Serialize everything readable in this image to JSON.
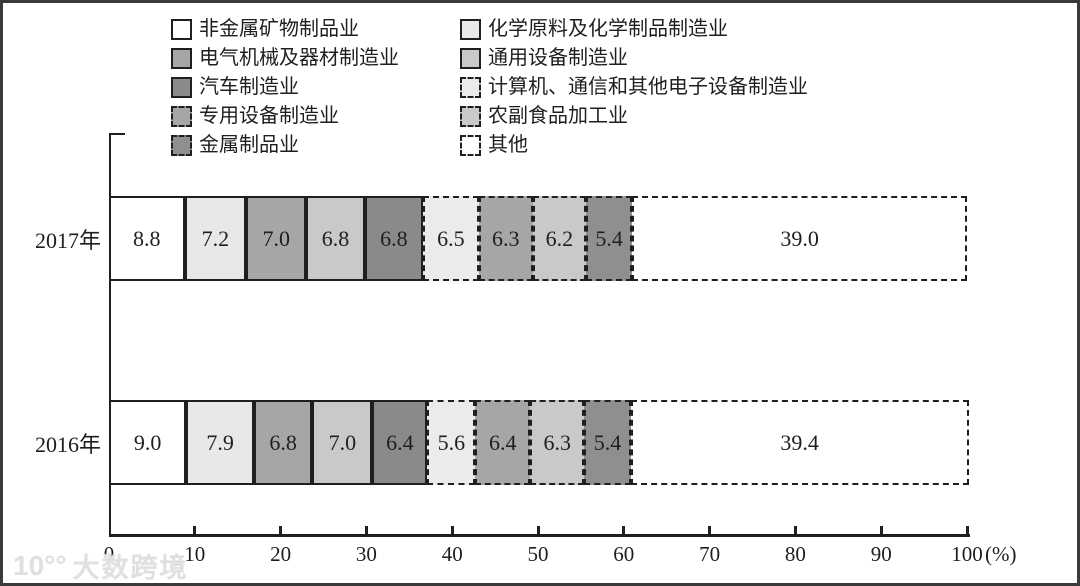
{
  "watermark": {
    "logo": "10°°",
    "text": "大数跨境"
  },
  "axis": {
    "ticks": [
      "0",
      "10",
      "20",
      "30",
      "40",
      "50",
      "60",
      "70",
      "80",
      "90",
      "100"
    ],
    "unit_label": "(%)"
  },
  "chart_data": {
    "type": "bar",
    "subtype": "horizontal-stacked",
    "title": "",
    "xlabel": "(%)",
    "xlim": [
      0,
      100
    ],
    "grid": false,
    "legend_position": "top",
    "categories": [
      "非金属矿物制品业",
      "化学原料及化学制品制造业",
      "电气机械及器材制造业",
      "通用设备制造业",
      "汽车制造业",
      "计算机、通信和其他电子设备制造业",
      "专用设备制造业",
      "农副食品加工业",
      "金属制品业",
      "其他"
    ],
    "category_styles": [
      {
        "fill": "#ffffff",
        "border": "solid"
      },
      {
        "fill": "#e8e8e8",
        "border": "solid"
      },
      {
        "fill": "#a6a6a6",
        "border": "solid"
      },
      {
        "fill": "#c9c9c9",
        "border": "solid"
      },
      {
        "fill": "#8a8a8a",
        "border": "solid"
      },
      {
        "fill": "#ebebeb",
        "border": "dashed"
      },
      {
        "fill": "#a6a6a6",
        "border": "dashed"
      },
      {
        "fill": "#c9c9c9",
        "border": "dashed"
      },
      {
        "fill": "#8f8f8f",
        "border": "dashed"
      },
      {
        "fill": "#ffffff",
        "border": "dashed"
      }
    ],
    "series": [
      {
        "name": "2017年",
        "values": [
          8.8,
          7.2,
          7.0,
          6.8,
          6.8,
          6.5,
          6.3,
          6.2,
          5.4,
          39.0
        ]
      },
      {
        "name": "2016年",
        "values": [
          9.0,
          7.9,
          6.8,
          7.0,
          6.4,
          5.6,
          6.4,
          6.3,
          5.4,
          39.4
        ]
      }
    ],
    "value_label_format": "one-decimal",
    "border_color": "#1f1f1f"
  }
}
